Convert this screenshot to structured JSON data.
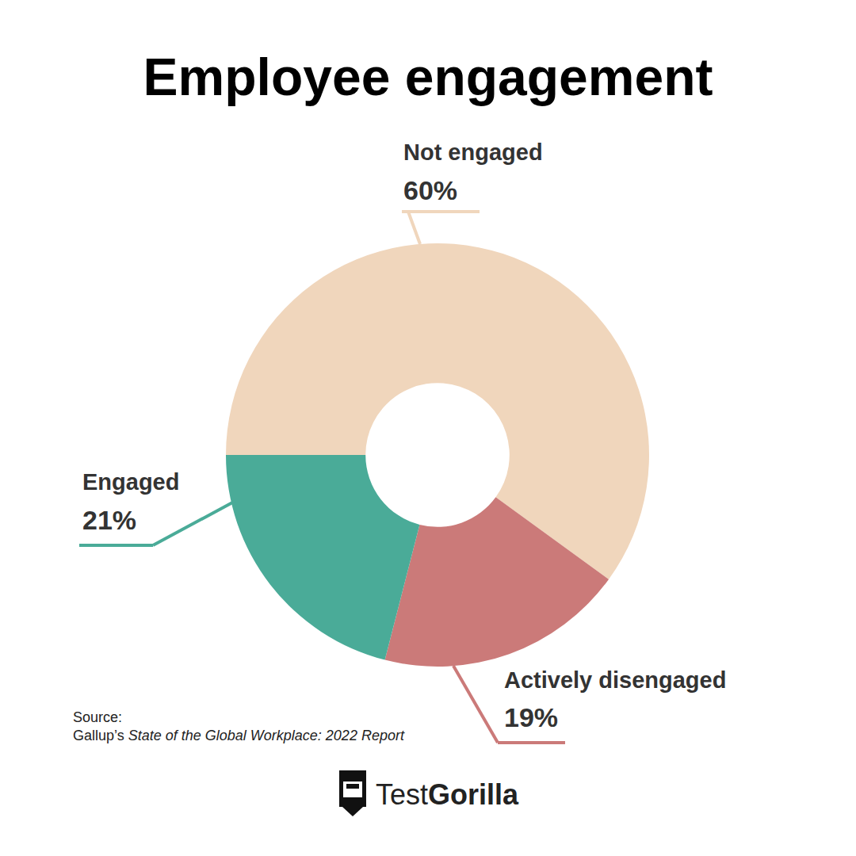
{
  "chart_data": {
    "type": "pie",
    "title": "Employee engagement",
    "categories": [
      "Not engaged",
      "Actively disengaged",
      "Engaged"
    ],
    "values": [
      60,
      19,
      21
    ],
    "value_labels": [
      "60%",
      "19%",
      "21%"
    ],
    "colors": [
      "#f0d6bc",
      "#cb7a79",
      "#4aab98"
    ],
    "data_labels": true,
    "source": [
      "Source:",
      "Gallup’s",
      "State of the Global Workplace: 2022 Report"
    ],
    "brand": [
      "Test",
      "Gorilla"
    ]
  }
}
